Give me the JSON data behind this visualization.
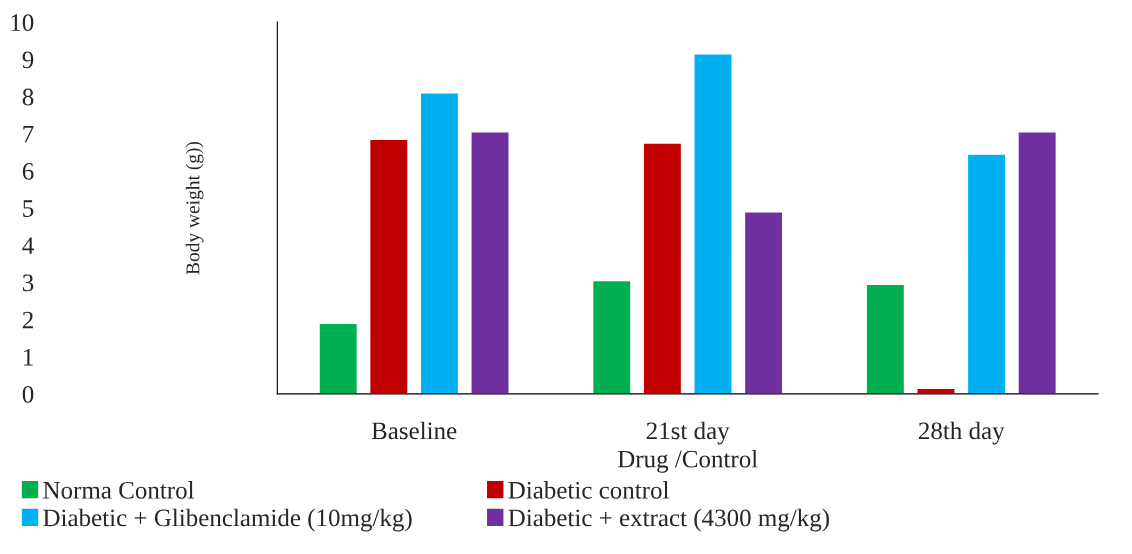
{
  "chart_data": {
    "type": "bar",
    "xlabel": "Drug /Control",
    "ylabel": "Body weight (g))",
    "categories": [
      "Baseline",
      "21st day",
      "28th day"
    ],
    "series": [
      {
        "name": "Norma Control",
        "color": "#00b050",
        "values": [
          1.9,
          3.05,
          2.95
        ]
      },
      {
        "name": "Diabetic control",
        "color": "#c00000",
        "values": [
          6.85,
          6.75,
          0.15
        ]
      },
      {
        "name": "Diabetic + Glibenclamide (10mg/kg)",
        "color": "#00b0f0",
        "values": [
          8.1,
          9.15,
          6.45
        ]
      },
      {
        "name": "Diabetic + extract (4300 mg/kg)",
        "color": "#7030a0",
        "values": [
          7.05,
          4.9,
          7.05
        ]
      }
    ],
    "ylim": [
      0,
      10
    ],
    "yticks": [
      0,
      1,
      2,
      3,
      4,
      5,
      6,
      7,
      8,
      9,
      10
    ],
    "grid": false,
    "legend": "bottom"
  }
}
